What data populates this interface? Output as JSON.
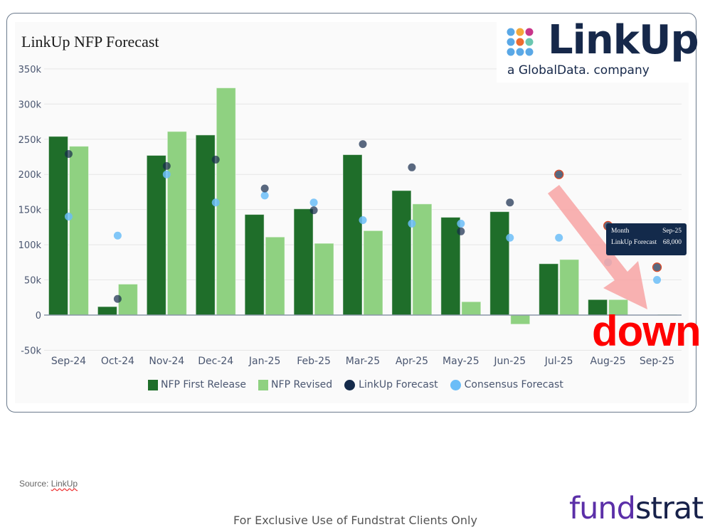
{
  "chart": {
    "title": "LinkUp NFP Forecast",
    "annotation": "down",
    "tooltip": {
      "row1_label": "Month",
      "row1_value": "Sep-25",
      "row2_label": "LinkUp Forecast",
      "row2_value": "68,000"
    }
  },
  "logo": {
    "name": "LinkUp",
    "tagline": "a GlobalData. company"
  },
  "legend": [
    {
      "label": "NFP First Release",
      "color": "#1f6e2a",
      "shape": "square"
    },
    {
      "label": "NFP Revised",
      "color": "#8fd181",
      "shape": "square"
    },
    {
      "label": "LinkUp Forecast",
      "color": "#142a4a",
      "shape": "circle"
    },
    {
      "label": "Consensus Forecast",
      "color": "#6bbdf7",
      "shape": "circle"
    }
  ],
  "footer": {
    "source_prefix": "Source:",
    "source_link": "LinkUp",
    "disclaimer": "For Exclusive Use of Fundstrat Clients Only",
    "brand_part1": "fund",
    "brand_part2": "strat"
  },
  "chart_data": {
    "type": "bar",
    "title": "LinkUp NFP Forecast",
    "xlabel": "",
    "ylabel": "",
    "ylim": [
      -50000,
      350000
    ],
    "yticks": [
      "-50k",
      "0",
      "50k",
      "100k",
      "150k",
      "200k",
      "250k",
      "300k",
      "350k"
    ],
    "grid": true,
    "legend_position": "bottom",
    "categories": [
      "Sep-24",
      "Oct-24",
      "Nov-24",
      "Dec-24",
      "Jan-25",
      "Feb-25",
      "Mar-25",
      "Apr-25",
      "May-25",
      "Jun-25",
      "Jul-25",
      "Aug-25",
      "Sep-25"
    ],
    "series": [
      {
        "name": "NFP First Release",
        "type": "bar",
        "color": "#1f6e2a",
        "values": [
          254000,
          12000,
          227000,
          256000,
          143000,
          151000,
          228000,
          177000,
          139000,
          147000,
          73000,
          22000,
          null
        ]
      },
      {
        "name": "NFP Revised",
        "type": "bar",
        "color": "#8fd181",
        "values": [
          240000,
          44000,
          261000,
          323000,
          111000,
          102000,
          120000,
          158000,
          19000,
          -13000,
          79000,
          22000,
          1000
        ]
      },
      {
        "name": "LinkUp Forecast",
        "type": "scatter",
        "color": "#142a4a",
        "values": [
          229000,
          23000,
          212000,
          221000,
          180000,
          149000,
          243000,
          210000,
          119000,
          160000,
          200000,
          127000,
          68000
        ]
      },
      {
        "name": "Consensus Forecast",
        "type": "scatter",
        "color": "#6bbdf7",
        "values": [
          140000,
          113000,
          200000,
          160000,
          170000,
          160000,
          135000,
          130000,
          130000,
          110000,
          110000,
          75000,
          50000
        ]
      }
    ],
    "annotations": [
      {
        "text": "down",
        "color": "#ff0000"
      },
      {
        "type": "arrow",
        "from": "Jul-25",
        "to": "Sep-25",
        "color": "#f9a0a0"
      },
      {
        "type": "tooltip",
        "text": "Month Sep-25, LinkUp Forecast 68,000"
      }
    ]
  }
}
